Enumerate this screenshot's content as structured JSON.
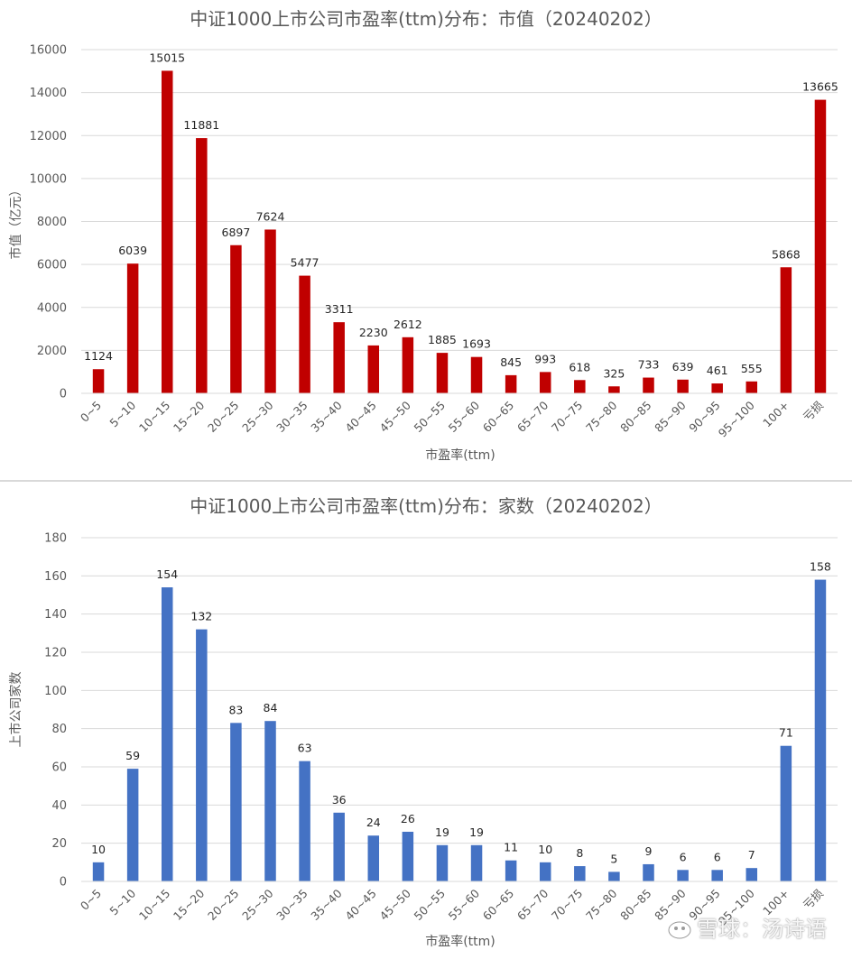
{
  "chart_data": [
    {
      "type": "bar",
      "title": "中证1000上市公司市盈率(ttm)分布：市值（20240202）",
      "xlabel": "市盈率(ttm)",
      "ylabel": "市值（亿元）",
      "ylim": [
        0,
        16000
      ],
      "yticks": [
        0,
        2000,
        4000,
        6000,
        8000,
        10000,
        12000,
        14000,
        16000
      ],
      "grid": true,
      "color": "#c00000",
      "categories": [
        "0~5",
        "5~10",
        "10~15",
        "15~20",
        "20~25",
        "25~30",
        "30~35",
        "35~40",
        "40~45",
        "45~50",
        "50~55",
        "55~60",
        "60~65",
        "65~70",
        "70~75",
        "75~80",
        "80~85",
        "85~90",
        "90~95",
        "95~100",
        "100+",
        "亏损"
      ],
      "values": [
        1124,
        6039,
        15015,
        11881,
        6897,
        7624,
        5477,
        3311,
        2230,
        2612,
        1885,
        1693,
        845,
        993,
        618,
        325,
        733,
        639,
        461,
        555,
        5868,
        13665
      ]
    },
    {
      "type": "bar",
      "title": "中证1000上市公司市盈率(ttm)分布：家数（20240202）",
      "xlabel": "市盈率(ttm)",
      "ylabel": "上市公司家数",
      "ylim": [
        0,
        180
      ],
      "yticks": [
        0,
        20,
        40,
        60,
        80,
        100,
        120,
        140,
        160,
        180
      ],
      "grid": true,
      "color": "#4472c4",
      "categories": [
        "0~5",
        "5~10",
        "10~15",
        "15~20",
        "20~25",
        "25~30",
        "30~35",
        "35~40",
        "40~45",
        "45~50",
        "50~55",
        "55~60",
        "60~65",
        "65~70",
        "70~75",
        "75~80",
        "80~85",
        "85~90",
        "90~95",
        "95~100",
        "100+",
        "亏损"
      ],
      "values": [
        10,
        59,
        154,
        132,
        83,
        84,
        63,
        36,
        24,
        26,
        19,
        19,
        11,
        10,
        8,
        5,
        9,
        6,
        6,
        7,
        71,
        158
      ]
    }
  ],
  "watermark": {
    "text": "雪球：汤诗语",
    "icon": "xueqiu-snowball-icon"
  }
}
